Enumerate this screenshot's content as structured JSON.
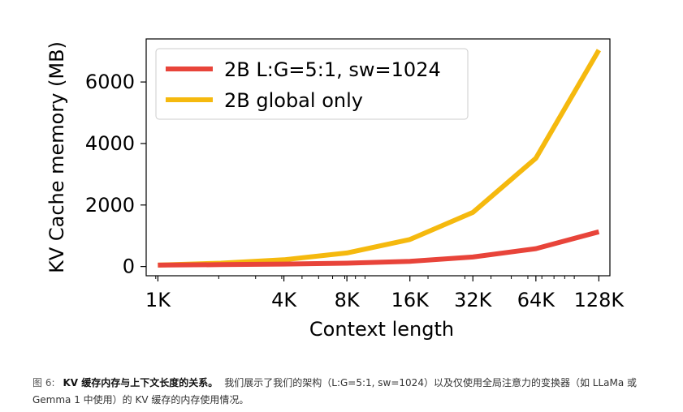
{
  "chart_data": {
    "type": "line",
    "xscale": "log2",
    "x": [
      1024,
      2048,
      4096,
      8192,
      16384,
      32768,
      65536,
      131072
    ],
    "xticks": [
      1024,
      4096,
      8192,
      16384,
      32768,
      65536,
      131072
    ],
    "xticklabels": [
      "1K",
      "4K",
      "8K",
      "16K",
      "32K",
      "64K",
      "128K"
    ],
    "xlim": [
      900,
      148000
    ],
    "yticks": [
      0,
      2000,
      4000,
      6000
    ],
    "yticklabels": [
      "0",
      "2000",
      "4000",
      "6000"
    ],
    "ylim": [
      -300,
      7400
    ],
    "xlabel": "Context length",
    "ylabel": "KV Cache memory (MB)",
    "grid": false,
    "legend_position": "top-left",
    "series": [
      {
        "name": "2B L:G=5:1, sw=1024",
        "color": "#e8443a",
        "values": [
          45,
          60,
          80,
          110,
          170,
          310,
          580,
          1130
        ]
      },
      {
        "name": "2B global only",
        "color": "#f5b90e",
        "values": [
          45,
          110,
          220,
          440,
          880,
          1760,
          3520,
          7040
        ]
      }
    ]
  },
  "caption": {
    "figure_no": "图 6:",
    "bold": "KV 缓存内存与上下文长度的关系。",
    "text": "我们展示了我们的架构（L:G=5:1, sw=1024）以及仅使用全局注意力的变换器（如 LLaMa 或 Gemma 1 中使用）的 KV 缓存的内存使用情况。"
  }
}
